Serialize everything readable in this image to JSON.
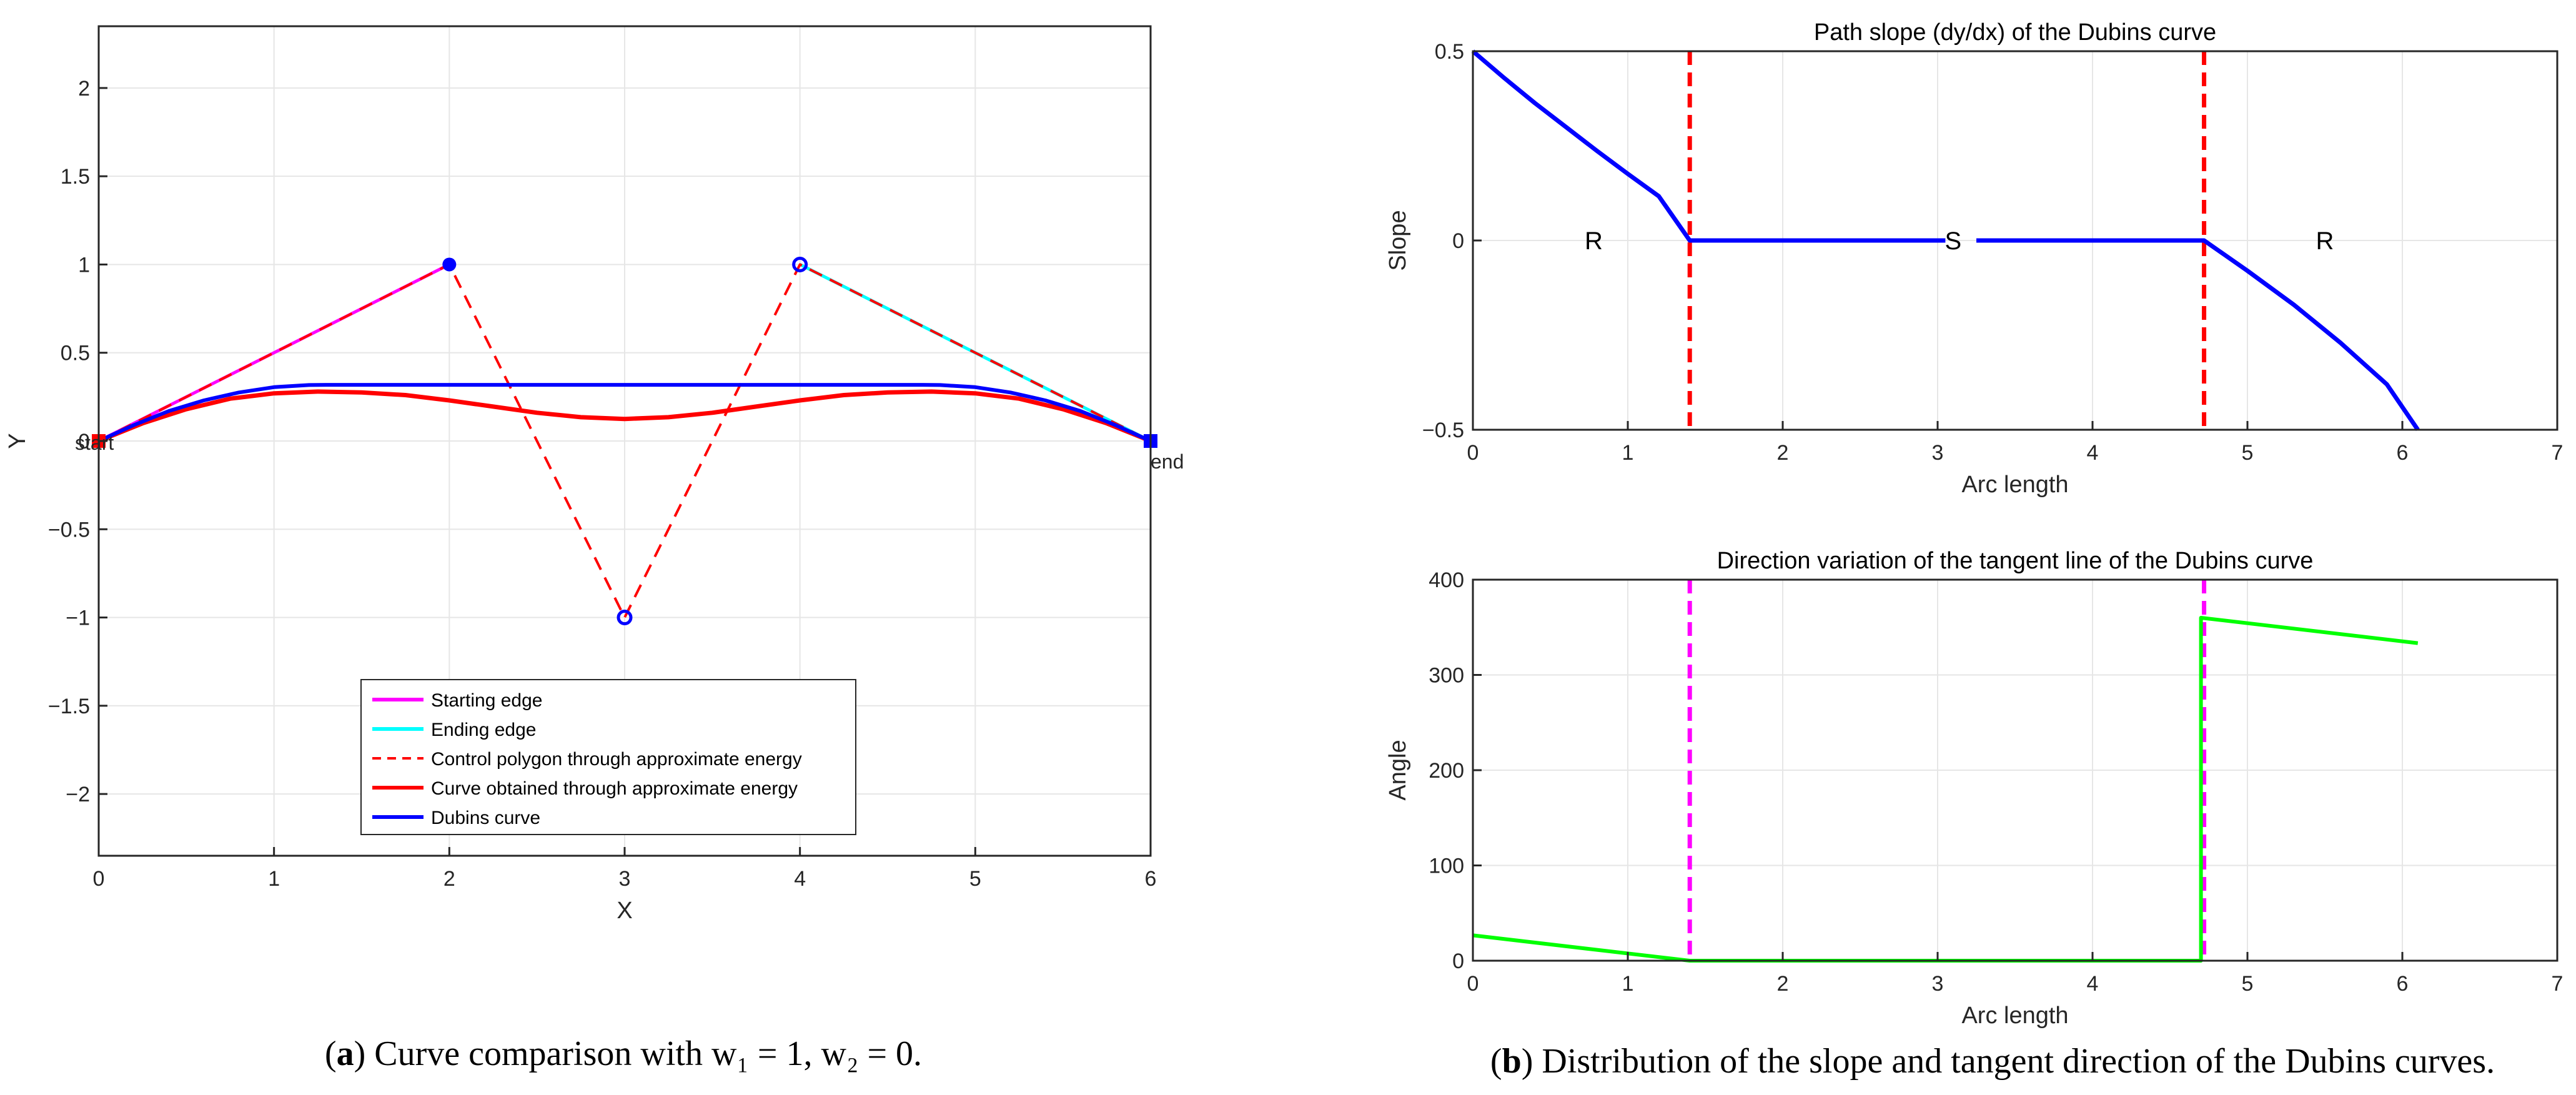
{
  "chart_data": [
    {
      "id": "a",
      "type": "line",
      "xlabel": "X",
      "ylabel": "Y",
      "xlim": [
        0,
        6
      ],
      "ylim": [
        -2.35,
        2.35
      ],
      "xticks": [
        0,
        1,
        2,
        3,
        4,
        5,
        6
      ],
      "yticks": [
        -2,
        -1.5,
        -1,
        -0.5,
        0,
        0.5,
        1,
        1.5,
        2
      ],
      "grid": true,
      "legend_position": "bottom-center",
      "series": [
        {
          "name": "Starting edge",
          "color": "#ff00ff",
          "style": "solid",
          "x": [
            0,
            2
          ],
          "y": [
            0,
            1
          ]
        },
        {
          "name": "Ending edge",
          "color": "#00ffff",
          "style": "solid",
          "x": [
            4,
            6
          ],
          "y": [
            1,
            0
          ]
        },
        {
          "name": "Control polygon through approximate energy",
          "color": "#ff0000",
          "style": "dashed",
          "x": [
            0,
            2,
            3,
            4,
            6
          ],
          "y": [
            0,
            1,
            -1,
            1,
            0
          ]
        },
        {
          "name": "Curve obtained through approximate energy",
          "color": "#ff0000",
          "style": "solid",
          "x": [
            0,
            0.25,
            0.5,
            0.75,
            1.0,
            1.25,
            1.5,
            1.75,
            2.0,
            2.25,
            2.5,
            2.75,
            3.0,
            3.25,
            3.5,
            3.75,
            4.0,
            4.25,
            4.5,
            4.75,
            5.0,
            5.25,
            5.5,
            5.75,
            6.0
          ],
          "y": [
            0,
            0.1,
            0.18,
            0.24,
            0.27,
            0.28,
            0.275,
            0.26,
            0.23,
            0.195,
            0.16,
            0.135,
            0.125,
            0.135,
            0.16,
            0.195,
            0.23,
            0.26,
            0.275,
            0.28,
            0.27,
            0.24,
            0.18,
            0.1,
            0
          ]
        },
        {
          "name": "Dubins curve",
          "color": "#0000ff",
          "style": "solid",
          "x": [
            0,
            0.2,
            0.4,
            0.6,
            0.8,
            1.0,
            1.2,
            1.3,
            4.7,
            4.8,
            5.0,
            5.2,
            5.4,
            5.6,
            5.8,
            6.0
          ],
          "y": [
            0,
            0.09,
            0.17,
            0.23,
            0.275,
            0.305,
            0.317,
            0.318,
            0.318,
            0.317,
            0.305,
            0.275,
            0.23,
            0.17,
            0.09,
            0
          ]
        }
      ],
      "markers": [
        {
          "x": 0,
          "y": 0,
          "shape": "filled-square",
          "color": "#ff0000"
        },
        {
          "x": 2,
          "y": 1,
          "shape": "filled-circle",
          "color": "#0000ff"
        },
        {
          "x": 3,
          "y": -1,
          "shape": "ring",
          "color": "#0000ff"
        },
        {
          "x": 4,
          "y": 1,
          "shape": "ring",
          "color": "#0000ff"
        },
        {
          "x": 6,
          "y": 0,
          "shape": "filled-square",
          "color": "#0000ff"
        }
      ],
      "annotations": [
        {
          "text": "start",
          "x": 0,
          "y": 0
        },
        {
          "text": "end",
          "x": 6,
          "y": 0
        }
      ],
      "caption": {
        "label": "a",
        "text": "Curve comparison with w₁ = 1, w₂ = 0."
      }
    },
    {
      "id": "b1",
      "type": "line",
      "title": "Path slope (dy/dx) of the Dubins curve",
      "xlabel": "Arc length",
      "ylabel": "Slope",
      "xlim": [
        0,
        7
      ],
      "ylim": [
        -0.5,
        0.5
      ],
      "xticks": [
        0,
        1,
        2,
        3,
        4,
        5,
        6,
        7
      ],
      "yticks": [
        -0.5,
        0,
        0.5
      ],
      "ytick_labels": [
        "−0.5",
        "0",
        "0.5"
      ],
      "grid": true,
      "series": [
        {
          "name": "Slope",
          "color": "#0000ff",
          "style": "solid",
          "x": [
            0,
            0.2,
            0.4,
            0.6,
            0.8,
            1.0,
            1.2,
            1.4,
            3.05,
            3.25,
            4.72,
            5.0,
            5.3,
            5.6,
            5.9,
            6.1
          ],
          "y": [
            0.5,
            0.43,
            0.363,
            0.3,
            0.237,
            0.176,
            0.117,
            0,
            0,
            0,
            0,
            -0.08,
            -0.17,
            -0.27,
            -0.38,
            -0.5
          ],
          "gap_after_index": 8
        }
      ],
      "vlines": [
        {
          "x": 1.4,
          "color": "#ff0000"
        },
        {
          "x": 4.72,
          "color": "#ff0000"
        }
      ],
      "annotations": [
        {
          "text": "R",
          "x": 0.78,
          "y": 0
        },
        {
          "text": "S",
          "x": 3.1,
          "y": 0
        },
        {
          "text": "R",
          "x": 5.5,
          "y": 0
        }
      ]
    },
    {
      "id": "b2",
      "type": "line",
      "title": "Direction variation of  the tangent line of the Dubins curve",
      "xlabel": "Arc length",
      "ylabel": "Angle",
      "xlim": [
        0,
        7
      ],
      "ylim": [
        0,
        400
      ],
      "xticks": [
        0,
        1,
        2,
        3,
        4,
        5,
        6,
        7
      ],
      "yticks": [
        0,
        100,
        200,
        300,
        400
      ],
      "grid": true,
      "series": [
        {
          "name": "Angle",
          "color": "#00ff00",
          "style": "solid",
          "x": [
            0,
            1.4,
            4.7,
            4.7,
            6.1
          ],
          "y": [
            26.6,
            0,
            0,
            360,
            333.4
          ]
        }
      ],
      "vlines": [
        {
          "x": 1.4,
          "color": "#ff00ff"
        },
        {
          "x": 4.72,
          "color": "#ff00ff"
        }
      ],
      "caption": {
        "label": "b",
        "text": "Distribution of the slope and tangent direction of the Dubins curves."
      }
    }
  ]
}
